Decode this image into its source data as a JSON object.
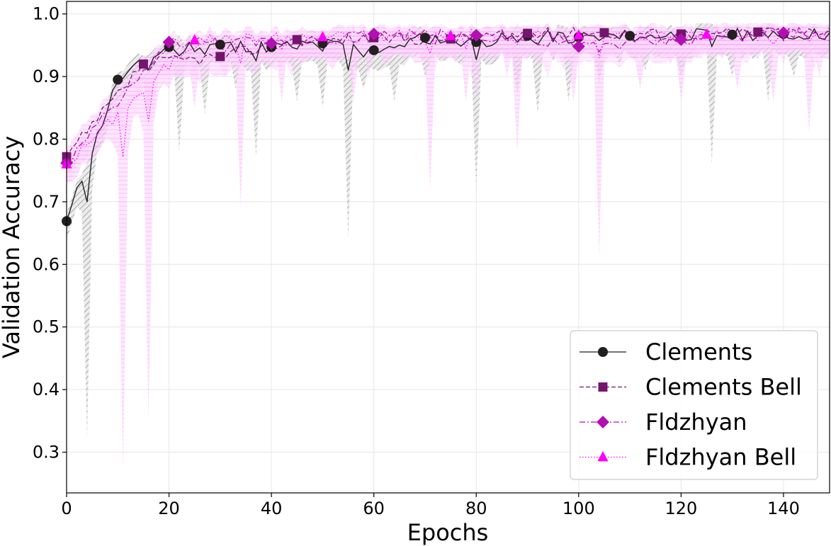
{
  "chart_data": {
    "type": "line",
    "title": "",
    "xlabel": "Epochs",
    "ylabel": "Validation Accuracy",
    "xlim": [
      0,
      149
    ],
    "ylim": [
      0.235,
      1.02
    ],
    "xticks": [
      0,
      20,
      40,
      60,
      80,
      100,
      120,
      140
    ],
    "yticks": [
      0.3,
      0.4,
      0.5,
      0.6,
      0.7,
      0.8,
      0.9,
      1.0
    ],
    "xtick_labels": [
      "0",
      "20",
      "40",
      "60",
      "80",
      "100",
      "120",
      "140"
    ],
    "ytick_labels": [
      "0.3",
      "0.4",
      "0.5",
      "0.6",
      "0.7",
      "0.8",
      "0.9",
      "1.0"
    ],
    "grid": true,
    "legend_position": "bottom-right",
    "series": [
      {
        "name": "Clements",
        "color": "#231f20",
        "line": "solid",
        "marker": "circle",
        "markers": [
          [
            0,
            0.669
          ],
          [
            10,
            0.895
          ],
          [
            20,
            0.947
          ],
          [
            30,
            0.951
          ],
          [
            40,
            0.947
          ],
          [
            50,
            0.953
          ],
          [
            60,
            0.942
          ],
          [
            70,
            0.962
          ],
          [
            80,
            0.955
          ],
          [
            90,
            0.965
          ],
          [
            100,
            0.963
          ],
          [
            110,
            0.965
          ],
          [
            120,
            0.967
          ],
          [
            130,
            0.967
          ],
          [
            140,
            0.968
          ]
        ],
        "dips": [
          [
            4,
            0.32
          ],
          [
            10,
            0.86
          ],
          [
            16,
            0.83
          ],
          [
            22,
            0.78
          ],
          [
            27,
            0.84
          ],
          [
            33,
            0.88
          ],
          [
            37,
            0.77
          ],
          [
            45,
            0.86
          ],
          [
            50,
            0.85
          ],
          [
            55,
            0.64
          ],
          [
            58,
            0.88
          ],
          [
            64,
            0.86
          ],
          [
            70,
            0.9
          ],
          [
            80,
            0.72
          ],
          [
            88,
            0.87
          ],
          [
            92,
            0.84
          ],
          [
            98,
            0.86
          ],
          [
            104,
            0.89
          ],
          [
            108,
            0.92
          ],
          [
            113,
            0.91
          ],
          [
            120,
            0.9
          ],
          [
            126,
            0.76
          ],
          [
            130,
            0.9
          ],
          [
            137,
            0.86
          ],
          [
            142,
            0.9
          ]
        ]
      },
      {
        "name": "Clements Bell",
        "color": "#75146d",
        "line": "dashed",
        "marker": "square",
        "markers": [
          [
            0,
            0.772
          ],
          [
            15,
            0.92
          ],
          [
            30,
            0.932
          ],
          [
            45,
            0.959
          ],
          [
            60,
            0.962
          ],
          [
            75,
            0.96
          ],
          [
            90,
            0.969
          ],
          [
            105,
            0.97
          ],
          [
            120,
            0.968
          ],
          [
            135,
            0.971
          ]
        ],
        "dips": [
          [
            4,
            0.77
          ],
          [
            11,
            0.84
          ],
          [
            16,
            0.82
          ],
          [
            29,
            0.9
          ],
          [
            41,
            0.91
          ],
          [
            52,
            0.91
          ],
          [
            62,
            0.92
          ],
          [
            80,
            0.86
          ],
          [
            86,
            0.9
          ],
          [
            97,
            0.91
          ],
          [
            108,
            0.93
          ],
          [
            118,
            0.92
          ],
          [
            128,
            0.93
          ],
          [
            140,
            0.92
          ],
          [
            147,
            0.9
          ]
        ]
      },
      {
        "name": "Fldzhyan",
        "color": "#b30fb3",
        "line": "dashdot",
        "marker": "diamond",
        "markers": [
          [
            0,
            0.762
          ],
          [
            20,
            0.955
          ],
          [
            40,
            0.953
          ],
          [
            60,
            0.968
          ],
          [
            80,
            0.966
          ],
          [
            100,
            0.948
          ],
          [
            120,
            0.959
          ],
          [
            140,
            0.97
          ]
        ],
        "dips": [
          [
            11,
            0.81
          ],
          [
            17,
            0.84
          ],
          [
            31,
            0.9
          ],
          [
            44,
            0.9
          ],
          [
            59,
            0.9
          ],
          [
            72,
            0.91
          ],
          [
            79,
            0.9
          ],
          [
            94,
            0.9
          ],
          [
            104,
            0.9
          ],
          [
            116,
            0.92
          ],
          [
            133,
            0.92
          ],
          [
            146,
            0.91
          ]
        ]
      },
      {
        "name": "Fldzhyan Bell",
        "color": "#ff00ff",
        "line": "dotted",
        "marker": "triangle",
        "markers": [
          [
            0,
            0.76
          ],
          [
            25,
            0.958
          ],
          [
            50,
            0.963
          ],
          [
            75,
            0.965
          ],
          [
            100,
            0.966
          ],
          [
            125,
            0.967
          ]
        ],
        "dips": [
          [
            11,
            0.27
          ],
          [
            16,
            0.35
          ],
          [
            25,
            0.85
          ],
          [
            34,
            0.69
          ],
          [
            42,
            0.86
          ],
          [
            56,
            0.86
          ],
          [
            71,
            0.72
          ],
          [
            78,
            0.86
          ],
          [
            88,
            0.78
          ],
          [
            99,
            0.86
          ],
          [
            104,
            0.61
          ],
          [
            112,
            0.88
          ],
          [
            120,
            0.86
          ],
          [
            131,
            0.88
          ],
          [
            138,
            0.86
          ],
          [
            145,
            0.81
          ]
        ]
      }
    ]
  }
}
